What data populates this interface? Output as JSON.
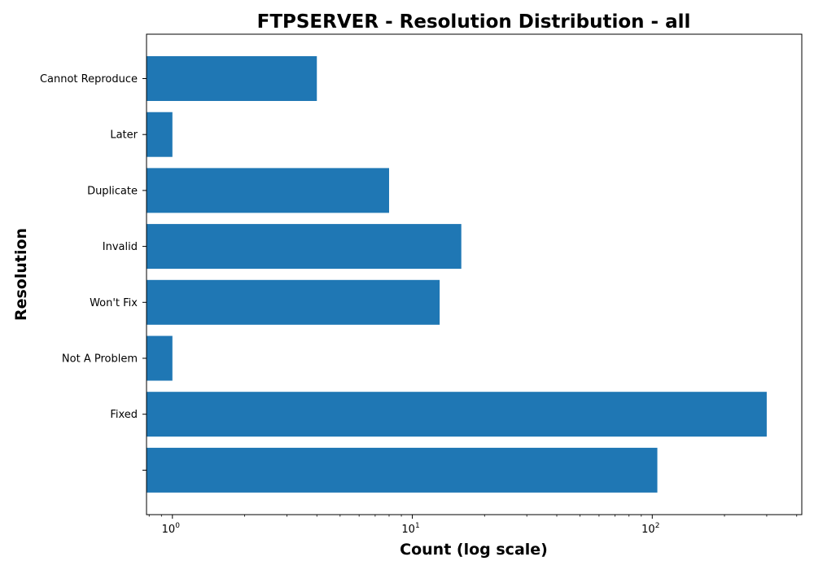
{
  "chart_data": {
    "type": "bar",
    "orientation": "horizontal",
    "title": "FTPSERVER - Resolution Distribution - all",
    "xlabel": "Count (log scale)",
    "ylabel": "Resolution",
    "x_scale": "log",
    "xlim": [
      0.78,
      420
    ],
    "x_ticks": [
      {
        "value": 1,
        "base": "10",
        "exp": "0"
      },
      {
        "value": 10,
        "base": "10",
        "exp": "1"
      },
      {
        "value": 100,
        "base": "10",
        "exp": "2"
      }
    ],
    "categories": [
      "Cannot Reproduce",
      "Later",
      "Duplicate",
      "Invalid",
      "Won't Fix",
      "Not A Problem",
      "Fixed",
      ""
    ],
    "values": [
      4,
      1,
      8,
      16,
      13,
      1,
      300,
      105
    ],
    "bar_color": "#1f77b4",
    "grid": false,
    "legend": "none"
  }
}
